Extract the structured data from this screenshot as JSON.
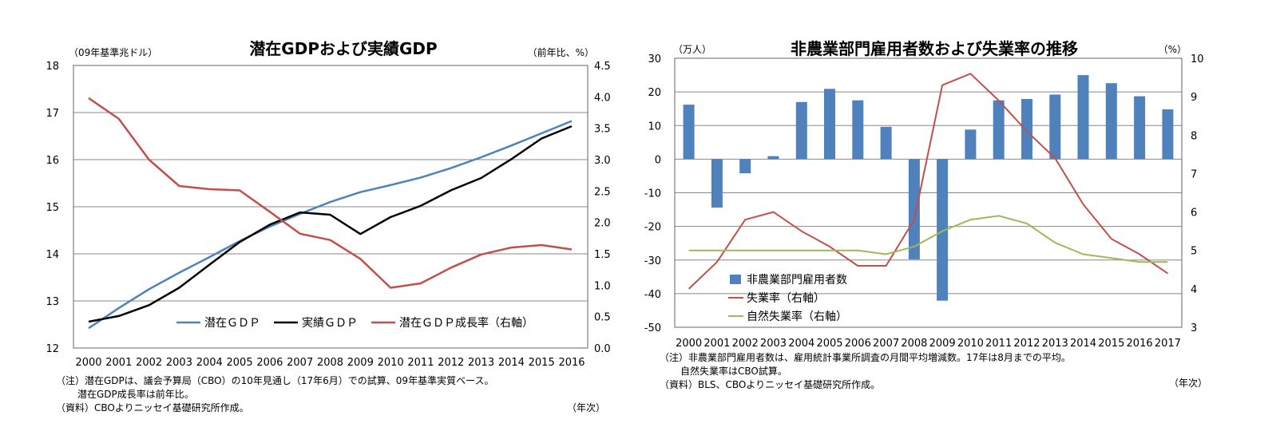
{
  "chart_data": [
    {
      "type": "line",
      "title": "潜在GDPおよび実績GDP",
      "left_unit": "（09年基準兆ドル）",
      "right_unit": "（前年比、%）",
      "x_unit": "（年次）",
      "x": [
        "2000",
        "2001",
        "2002",
        "2003",
        "2004",
        "2005",
        "2006",
        "2007",
        "2008",
        "2009",
        "2010",
        "2011",
        "2012",
        "2013",
        "2014",
        "2015",
        "2016"
      ],
      "ylim": [
        12,
        18
      ],
      "yticks": [
        "12",
        "13",
        "14",
        "15",
        "16",
        "17",
        "18"
      ],
      "ylim_right": [
        0,
        4.5
      ],
      "yticks_right": [
        "0.0",
        "0.5",
        "1.0",
        "1.5",
        "2.0",
        "2.5",
        "3.0",
        "3.5",
        "4.0",
        "4.5"
      ],
      "series": [
        {
          "name": "潜在ＧＤＰ",
          "axis": "left",
          "color": "#4f81bd",
          "values": [
            12.42,
            12.85,
            13.25,
            13.6,
            13.93,
            14.27,
            14.58,
            14.85,
            15.1,
            15.31,
            15.46,
            15.62,
            15.82,
            16.05,
            16.3,
            16.56,
            16.82
          ]
        },
        {
          "name": "実績ＧＤＰ",
          "axis": "left",
          "color": "#000000",
          "values": [
            12.56,
            12.68,
            12.91,
            13.28,
            13.77,
            14.25,
            14.62,
            14.88,
            14.83,
            14.42,
            14.78,
            15.02,
            15.35,
            15.61,
            16.01,
            16.45,
            16.71
          ]
        },
        {
          "name": "潜在ＧＤＰ成長率（右軸）",
          "axis": "right",
          "color": "#c0504d",
          "values": [
            3.98,
            3.65,
            3.0,
            2.58,
            2.53,
            2.51,
            2.17,
            1.82,
            1.72,
            1.42,
            0.96,
            1.03,
            1.28,
            1.49,
            1.6,
            1.64,
            1.57
          ]
        }
      ],
      "notes": [
        "（注）潜在GDPは、議会予算局（CBO）の10年見通し（17年6月）での試算、09年基準実質ベース。",
        "潜在GDP成長率は前年比。",
        "（資料）CBOよりニッセイ基礎研究所作成。"
      ]
    },
    {
      "type": "bar",
      "title": "非農業部門雇用者数および失業率の推移",
      "left_unit": "（万人）",
      "right_unit": "（%）",
      "x_unit": "（年次）",
      "categories": [
        "2000",
        "2001",
        "2002",
        "2003",
        "2004",
        "2005",
        "2006",
        "2007",
        "2008",
        "2009",
        "2010",
        "2011",
        "2012",
        "2013",
        "2014",
        "2015",
        "2016",
        "2017"
      ],
      "ylim": [
        -50,
        30
      ],
      "yticks": [
        "-50",
        "-40",
        "-30",
        "-20",
        "-10",
        "0",
        "10",
        "20",
        "30"
      ],
      "ylim_right": [
        3,
        10
      ],
      "yticks_right": [
        "3",
        "4",
        "5",
        "6",
        "7",
        "8",
        "9",
        "10"
      ],
      "series": [
        {
          "name": "非農業部門雇用者数",
          "axis": "left",
          "kind": "bar",
          "color": "#4f81bd",
          "values": [
            16.2,
            -14.4,
            -4.2,
            0.9,
            17.0,
            20.9,
            17.5,
            9.6,
            -29.8,
            -42.1,
            8.8,
            17.5,
            17.9,
            19.2,
            25.0,
            22.6,
            18.7,
            14.8
          ]
        },
        {
          "name": "失業率（右軸）",
          "axis": "right",
          "kind": "line",
          "color": "#c0504d",
          "values": [
            4.0,
            4.7,
            5.8,
            6.0,
            5.5,
            5.1,
            4.6,
            4.6,
            5.8,
            9.3,
            9.6,
            8.9,
            8.1,
            7.4,
            6.2,
            5.3,
            4.9,
            4.4
          ]
        },
        {
          "name": "自然失業率（右軸）",
          "axis": "right",
          "kind": "line",
          "color": "#9bbb59",
          "values": [
            5.0,
            5.0,
            5.0,
            5.0,
            5.0,
            5.0,
            5.0,
            4.9,
            5.1,
            5.5,
            5.8,
            5.9,
            5.7,
            5.2,
            4.9,
            4.8,
            4.7,
            4.7
          ]
        }
      ],
      "notes": [
        "（注）非農業部門雇用者数は、雇用統計事業所調査の月間平均増減数。17年は8月までの平均。",
        "自然失業率はCBO試算。",
        "（資料）BLS、CBOよりニッセイ基礎研究所作成。"
      ]
    }
  ]
}
